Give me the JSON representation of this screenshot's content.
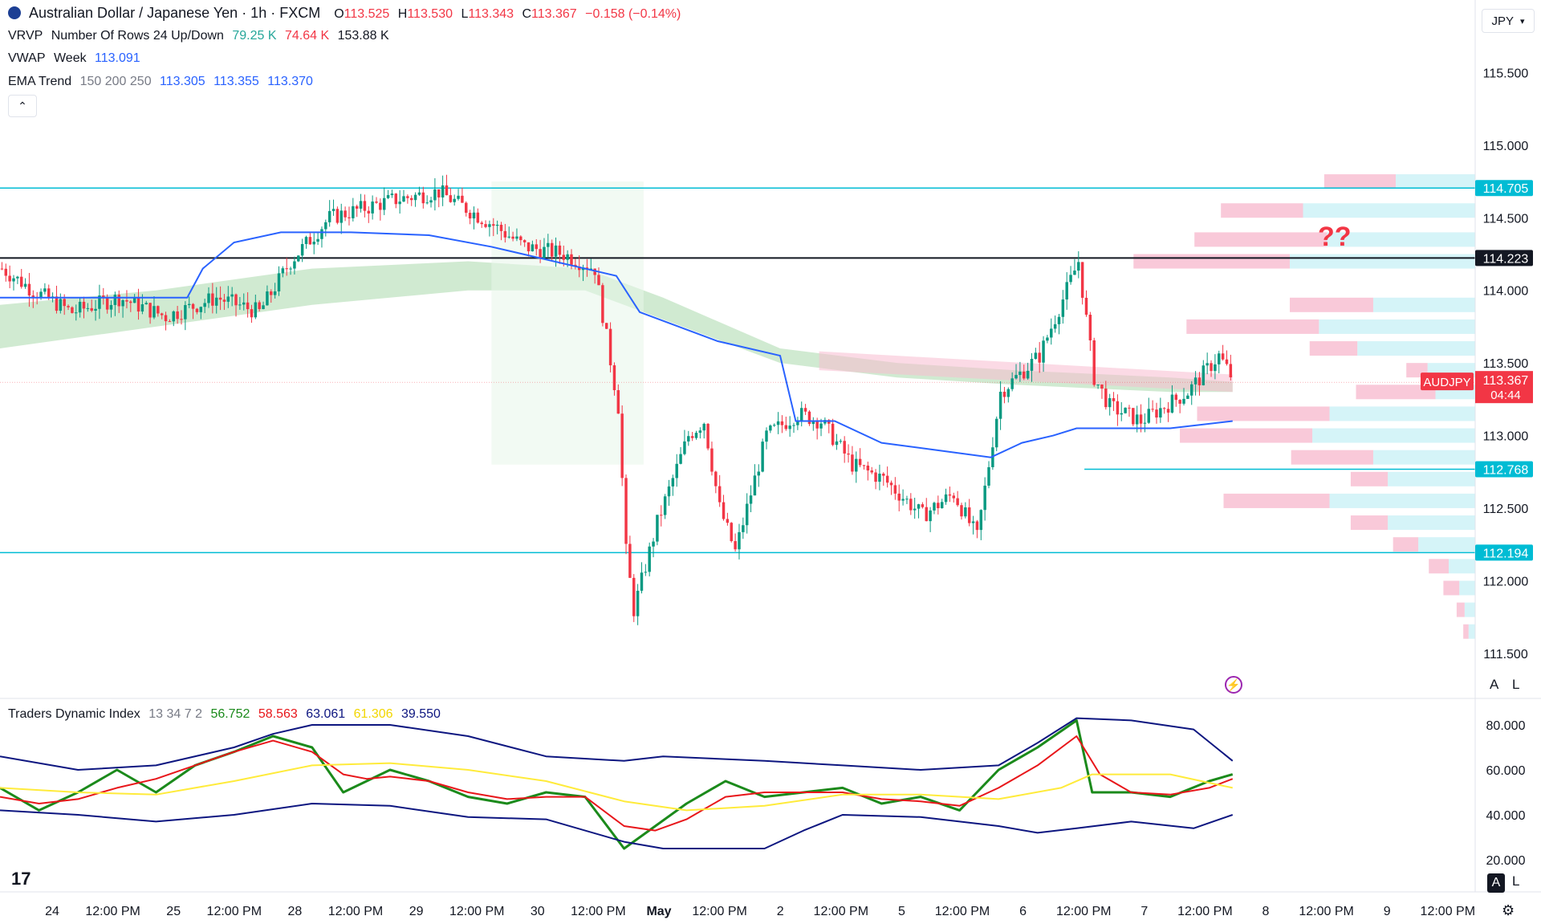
{
  "header": {
    "symbol_name": "Australian Dollar / Japanese Yen · 1h · FXCM",
    "open_label": "O",
    "open": "113.525",
    "high_label": "H",
    "high": "113.530",
    "low_label": "L",
    "low": "113.343",
    "close_label": "C",
    "close": "113.367",
    "change": "−0.158 (−0.14%)"
  },
  "indicators": {
    "vrvp": {
      "name": "VRVP",
      "params": "Number Of Rows 24 Up/Down",
      "v1": "79.25 K",
      "v2": "74.64 K",
      "v3": "153.88 K"
    },
    "vwap": {
      "name": "VWAP",
      "params": "Week",
      "value": "113.091"
    },
    "ema": {
      "name": "EMA Trend",
      "params": "150 200 250",
      "v1": "113.305",
      "v2": "113.355",
      "v3": "113.370"
    }
  },
  "collapse_icon": "chevron-up-icon",
  "currency": "JPY",
  "annotation": "??",
  "price_tag": {
    "symbol": "AUDJPY",
    "price": "113.367",
    "countdown": "04:44"
  },
  "tdi": {
    "name": "Traders Dynamic Index",
    "params": "13 34 7 2",
    "values": [
      "56.752",
      "58.563",
      "63.061",
      "61.306",
      "39.550"
    ]
  },
  "scale_buttons": {
    "auto": "A",
    "log": "L"
  },
  "colors": {
    "up": "#089981",
    "down": "#f23645",
    "vwap": "#2962ff",
    "level_cyan": "#00bcd4",
    "tdi_green": "#1b8a1b",
    "tdi_red": "#e8161a",
    "tdi_blue": "#0d1680",
    "tdi_yellow": "#ffeb3b"
  },
  "chart_data": {
    "type": "candlestick",
    "timeframe": "1h",
    "price_axis": {
      "ylim": [
        111.3,
        116.0
      ],
      "ticks": [
        {
          "label": "115.500",
          "value": 115.5
        },
        {
          "label": "115.000",
          "value": 115.0
        },
        {
          "label": "114.500",
          "value": 114.5
        },
        {
          "label": "114.000",
          "value": 114.0
        },
        {
          "label": "113.500",
          "value": 113.5
        },
        {
          "label": "113.000",
          "value": 113.0
        },
        {
          "label": "112.500",
          "value": 112.5
        },
        {
          "label": "112.000",
          "value": 112.0
        },
        {
          "label": "111.500",
          "value": 111.5
        }
      ]
    },
    "levels": [
      {
        "label": "114.705",
        "value": 114.705,
        "color": "#00bcd4"
      },
      {
        "label": "114.223",
        "value": 114.223,
        "color": "#131722"
      },
      {
        "label": "112.768",
        "value": 112.768,
        "color": "#00bcd4"
      },
      {
        "label": "112.194",
        "value": 112.194,
        "color": "#00bcd4"
      }
    ],
    "time_axis": [
      "24",
      "12:00 PM",
      "25",
      "12:00 PM",
      "28",
      "12:00 PM",
      "29",
      "12:00 PM",
      "30",
      "12:00 PM",
      "May",
      "12:00 PM",
      "2",
      "12:00 PM",
      "5",
      "12:00 PM",
      "6",
      "12:00 PM",
      "7",
      "12:00 PM",
      "8",
      "12:00 PM",
      "9",
      "12:00 PM"
    ],
    "close_path": [
      [
        0,
        114.15
      ],
      [
        8,
        114.0
      ],
      [
        18,
        113.85
      ],
      [
        30,
        113.95
      ],
      [
        42,
        113.82
      ],
      [
        55,
        113.95
      ],
      [
        66,
        113.85
      ],
      [
        74,
        114.2
      ],
      [
        84,
        114.5
      ],
      [
        100,
        114.62
      ],
      [
        112,
        114.68
      ],
      [
        126,
        114.45
      ],
      [
        134,
        114.3
      ],
      [
        144,
        114.25
      ],
      [
        152,
        114.15
      ],
      [
        158,
        113.2
      ],
      [
        160,
        112.2
      ],
      [
        162,
        111.8
      ],
      [
        168,
        112.4
      ],
      [
        176,
        113.0
      ],
      [
        180,
        113.1
      ],
      [
        184,
        112.5
      ],
      [
        188,
        112.2
      ],
      [
        196,
        113.0
      ],
      [
        204,
        113.15
      ],
      [
        210,
        113.1
      ],
      [
        218,
        112.8
      ],
      [
        226,
        112.7
      ],
      [
        236,
        112.45
      ],
      [
        244,
        112.6
      ],
      [
        250,
        112.3
      ],
      [
        256,
        113.3
      ],
      [
        266,
        113.55
      ],
      [
        276,
        114.2
      ],
      [
        280,
        113.4
      ],
      [
        284,
        113.2
      ],
      [
        292,
        113.1
      ],
      [
        304,
        113.3
      ],
      [
        312,
        113.55
      ],
      [
        316,
        113.37
      ]
    ],
    "vwap_path": [
      [
        0,
        113.95
      ],
      [
        24,
        113.95
      ],
      [
        48,
        113.95
      ],
      [
        52,
        114.15
      ],
      [
        60,
        114.33
      ],
      [
        72,
        114.4
      ],
      [
        90,
        114.4
      ],
      [
        110,
        114.38
      ],
      [
        126,
        114.3
      ],
      [
        158,
        114.1
      ],
      [
        164,
        113.85
      ],
      [
        184,
        113.65
      ],
      [
        200,
        113.55
      ],
      [
        204,
        113.1
      ],
      [
        214,
        113.1
      ],
      [
        226,
        112.95
      ],
      [
        240,
        112.9
      ],
      [
        254,
        112.85
      ],
      [
        262,
        112.95
      ],
      [
        270,
        113.0
      ],
      [
        276,
        113.05
      ],
      [
        286,
        113.05
      ],
      [
        300,
        113.05
      ],
      [
        316,
        113.1
      ]
    ],
    "volume_profile_rows": [
      {
        "price": 114.75,
        "up": 0.6,
        "down": 0.54
      },
      {
        "price": 114.55,
        "up": 1.3,
        "down": 0.62
      },
      {
        "price": 114.35,
        "up": 1.12,
        "down": 1.0
      },
      {
        "price": 114.2,
        "up": 1.4,
        "down": 1.18
      },
      {
        "price": 113.9,
        "up": 0.77,
        "down": 0.63
      },
      {
        "price": 113.75,
        "up": 1.18,
        "down": 1.0
      },
      {
        "price": 113.6,
        "up": 0.89,
        "down": 0.36
      },
      {
        "price": 113.45,
        "up": 0.36,
        "down": 0.16
      },
      {
        "price": 113.3,
        "up": 0.3,
        "down": 0.6
      },
      {
        "price": 113.15,
        "up": 1.1,
        "down": 1.0
      },
      {
        "price": 113.0,
        "up": 1.23,
        "down": 1.0
      },
      {
        "price": 112.85,
        "up": 0.77,
        "down": 0.62
      },
      {
        "price": 112.7,
        "up": 0.66,
        "down": 0.28
      },
      {
        "price": 112.55,
        "up": 1.1,
        "down": 0.8
      },
      {
        "price": 112.4,
        "up": 0.66,
        "down": 0.28
      },
      {
        "price": 112.25,
        "up": 0.43,
        "down": 0.19
      },
      {
        "price": 112.1,
        "up": 0.2,
        "down": 0.15
      },
      {
        "price": 111.95,
        "up": 0.12,
        "down": 0.12
      },
      {
        "price": 111.8,
        "up": 0.08,
        "down": 0.06
      },
      {
        "price": 111.65,
        "up": 0.05,
        "down": 0.04
      }
    ],
    "tdi_axis": {
      "ylim": [
        15,
        90
      ],
      "ticks": [
        {
          "label": "80.000",
          "value": 80
        },
        {
          "label": "60.000",
          "value": 60
        },
        {
          "label": "40.000",
          "value": 40
        },
        {
          "label": "20.000",
          "value": 20
        }
      ]
    },
    "tdi_series": [
      {
        "color": "#1b8a1b",
        "points": [
          [
            0,
            52
          ],
          [
            10,
            42
          ],
          [
            20,
            50
          ],
          [
            30,
            60
          ],
          [
            40,
            50
          ],
          [
            50,
            62
          ],
          [
            60,
            68
          ],
          [
            70,
            75
          ],
          [
            80,
            70
          ],
          [
            88,
            50
          ],
          [
            94,
            55
          ],
          [
            100,
            60
          ],
          [
            110,
            55
          ],
          [
            120,
            48
          ],
          [
            130,
            45
          ],
          [
            140,
            50
          ],
          [
            150,
            48
          ],
          [
            160,
            25
          ],
          [
            168,
            35
          ],
          [
            176,
            45
          ],
          [
            186,
            55
          ],
          [
            196,
            48
          ],
          [
            206,
            50
          ],
          [
            216,
            52
          ],
          [
            226,
            45
          ],
          [
            236,
            48
          ],
          [
            246,
            42
          ],
          [
            256,
            60
          ],
          [
            266,
            70
          ],
          [
            276,
            82
          ],
          [
            280,
            50
          ],
          [
            290,
            50
          ],
          [
            300,
            48
          ],
          [
            310,
            55
          ],
          [
            316,
            58
          ]
        ]
      },
      {
        "color": "#e8161a",
        "points": [
          [
            0,
            48
          ],
          [
            10,
            45
          ],
          [
            20,
            47
          ],
          [
            30,
            52
          ],
          [
            40,
            56
          ],
          [
            50,
            62
          ],
          [
            60,
            68
          ],
          [
            70,
            73
          ],
          [
            80,
            68
          ],
          [
            88,
            58
          ],
          [
            94,
            56
          ],
          [
            100,
            57
          ],
          [
            110,
            55
          ],
          [
            120,
            50
          ],
          [
            130,
            47
          ],
          [
            140,
            48
          ],
          [
            150,
            48
          ],
          [
            160,
            35
          ],
          [
            168,
            33
          ],
          [
            176,
            38
          ],
          [
            186,
            48
          ],
          [
            196,
            50
          ],
          [
            206,
            50
          ],
          [
            216,
            50
          ],
          [
            226,
            47
          ],
          [
            236,
            46
          ],
          [
            246,
            44
          ],
          [
            256,
            52
          ],
          [
            266,
            62
          ],
          [
            276,
            75
          ],
          [
            282,
            58
          ],
          [
            290,
            50
          ],
          [
            300,
            49
          ],
          [
            310,
            52
          ],
          [
            316,
            56
          ]
        ]
      },
      {
        "color": "#ffeb3b",
        "points": [
          [
            0,
            52
          ],
          [
            20,
            50
          ],
          [
            40,
            49
          ],
          [
            60,
            55
          ],
          [
            80,
            62
          ],
          [
            100,
            63
          ],
          [
            120,
            60
          ],
          [
            140,
            55
          ],
          [
            160,
            46
          ],
          [
            176,
            42
          ],
          [
            196,
            44
          ],
          [
            216,
            49
          ],
          [
            236,
            49
          ],
          [
            256,
            47
          ],
          [
            272,
            52
          ],
          [
            280,
            58
          ],
          [
            300,
            58
          ],
          [
            316,
            52
          ]
        ]
      },
      {
        "color": "#0d1680",
        "points": [
          [
            0,
            66
          ],
          [
            20,
            60
          ],
          [
            40,
            62
          ],
          [
            60,
            70
          ],
          [
            70,
            76
          ],
          [
            80,
            80
          ],
          [
            100,
            80
          ],
          [
            120,
            75
          ],
          [
            140,
            66
          ],
          [
            160,
            64
          ],
          [
            170,
            66
          ],
          [
            196,
            64
          ],
          [
            216,
            62
          ],
          [
            236,
            60
          ],
          [
            256,
            62
          ],
          [
            266,
            72
          ],
          [
            276,
            83
          ],
          [
            290,
            82
          ],
          [
            306,
            78
          ],
          [
            316,
            64
          ]
        ]
      },
      {
        "color": "#0d1680",
        "points": [
          [
            0,
            42
          ],
          [
            20,
            40
          ],
          [
            40,
            37
          ],
          [
            60,
            40
          ],
          [
            80,
            45
          ],
          [
            100,
            44
          ],
          [
            120,
            39
          ],
          [
            140,
            38
          ],
          [
            160,
            28
          ],
          [
            170,
            25
          ],
          [
            196,
            25
          ],
          [
            206,
            33
          ],
          [
            216,
            40
          ],
          [
            236,
            39
          ],
          [
            256,
            35
          ],
          [
            266,
            32
          ],
          [
            276,
            34
          ],
          [
            290,
            37
          ],
          [
            306,
            34
          ],
          [
            316,
            40
          ]
        ]
      }
    ]
  }
}
